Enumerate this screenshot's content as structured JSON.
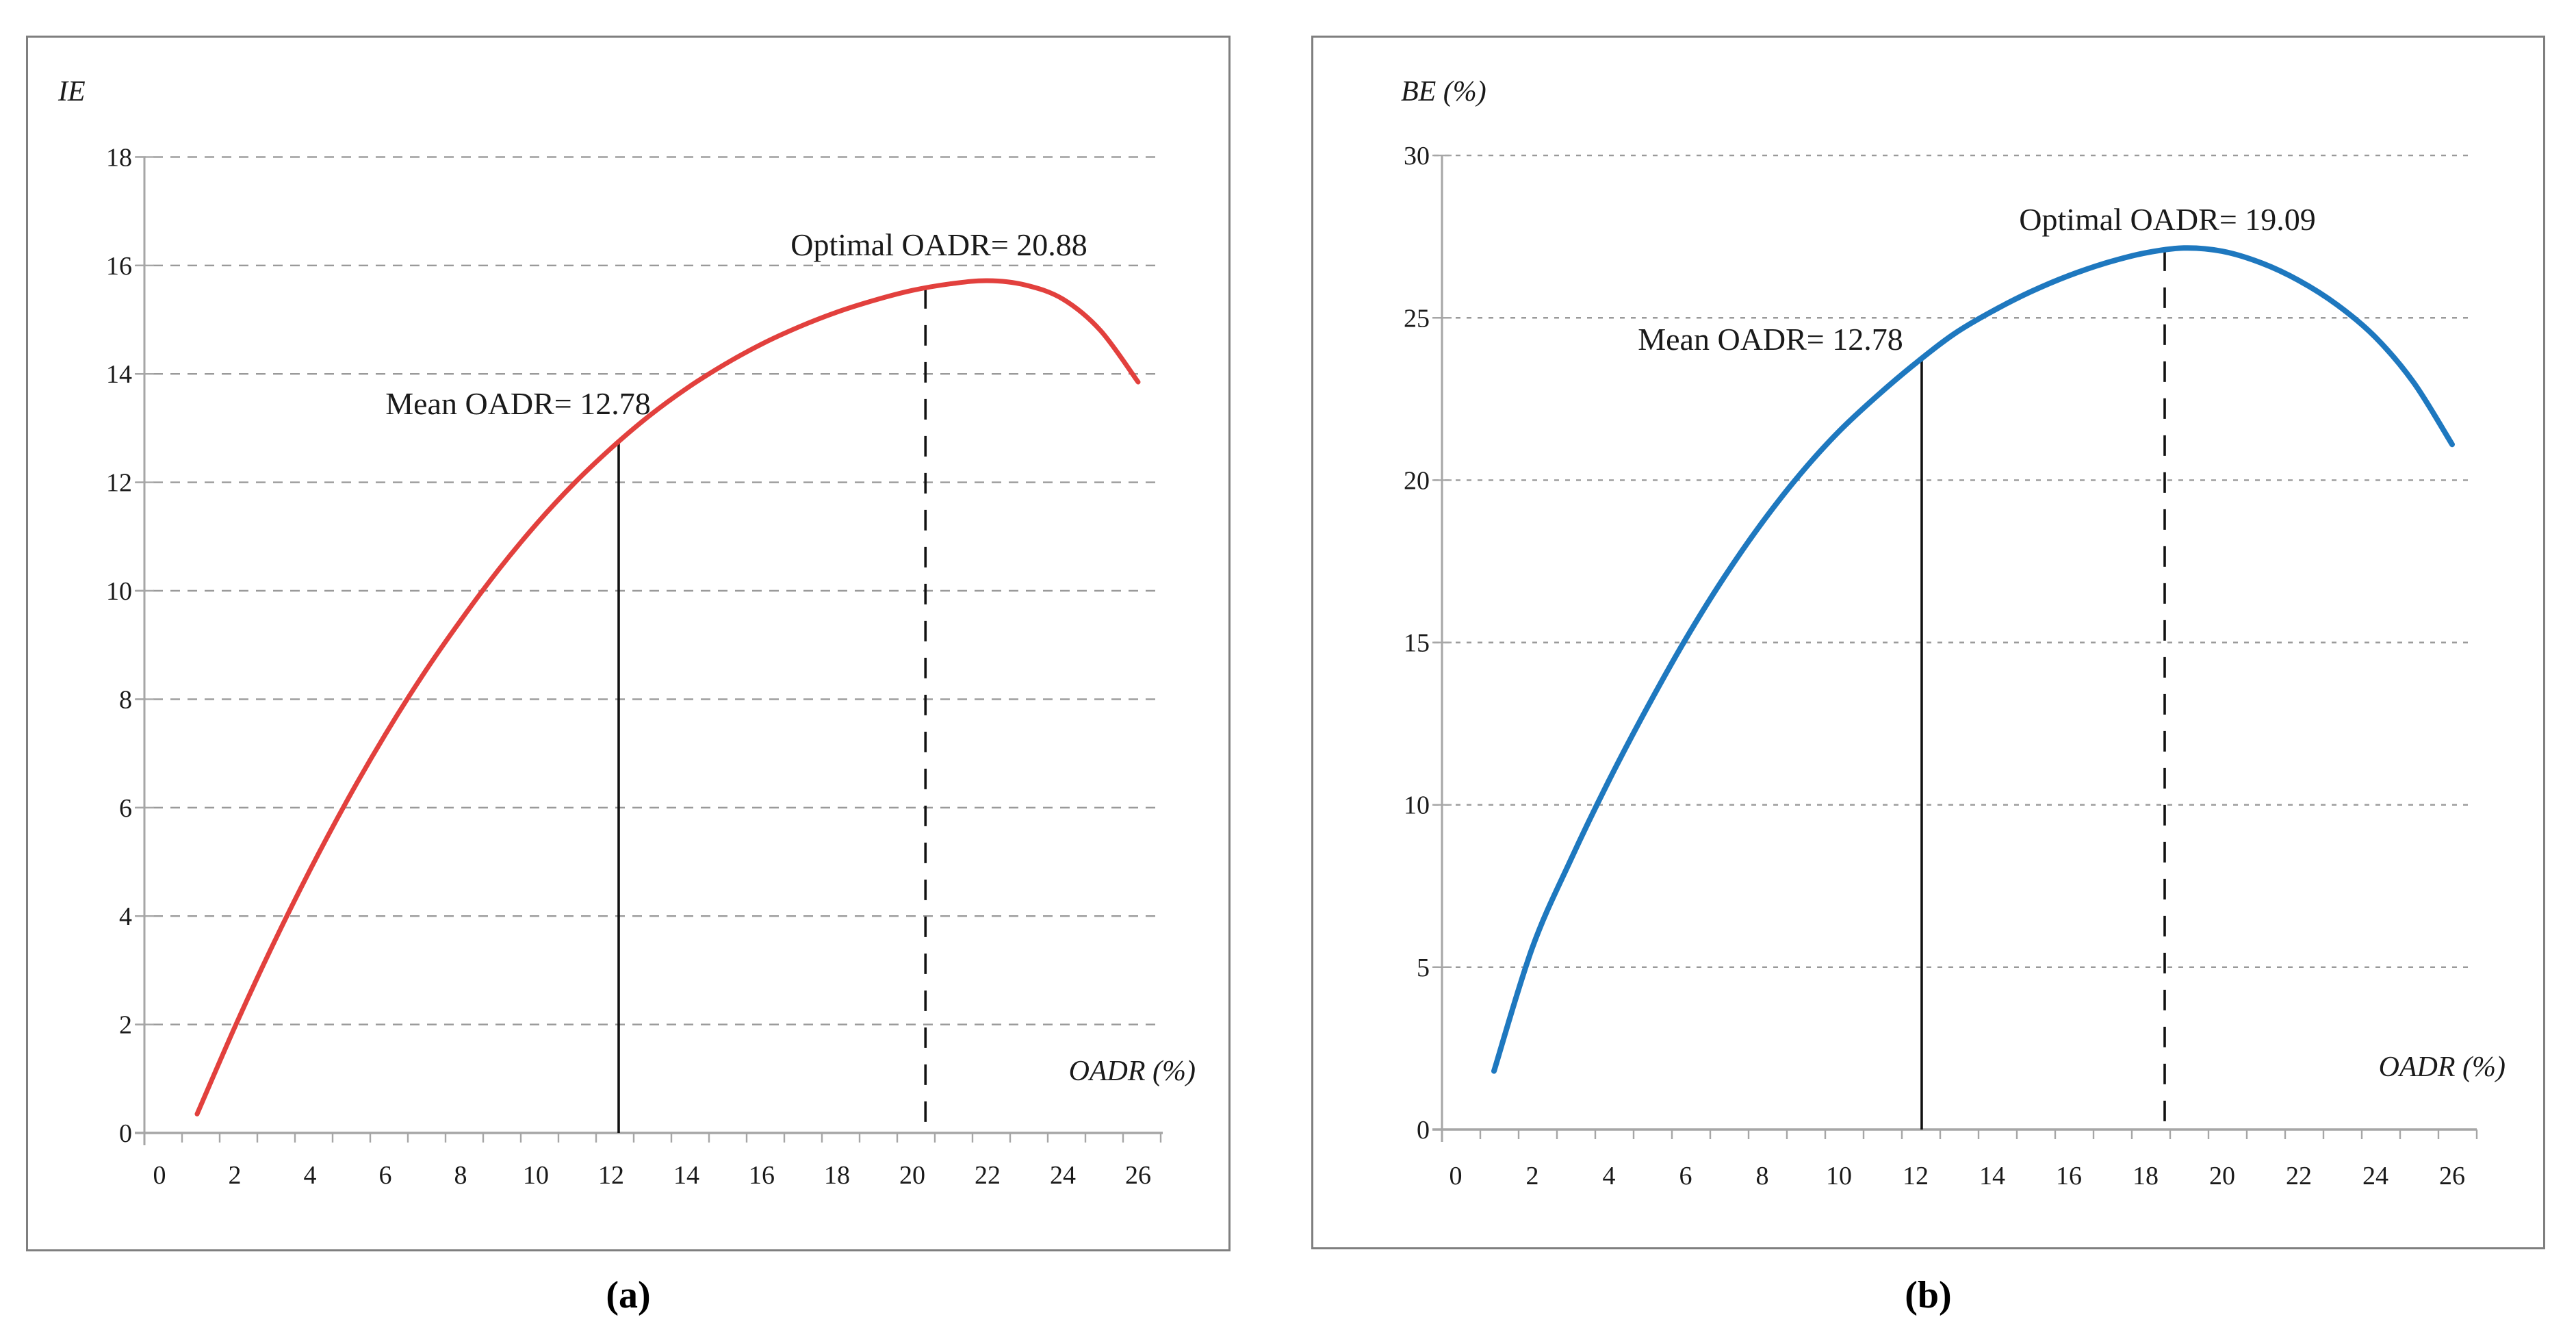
{
  "figure": {
    "captions": {
      "a": "(a)",
      "b": "(b)"
    }
  },
  "chart_data": [
    {
      "id": "a",
      "type": "line",
      "caption": "(a)",
      "y_axis_label": "IE",
      "x_axis_label": "OADR (%)",
      "x_range": [
        0,
        26
      ],
      "y_range": [
        0,
        18
      ],
      "x_ticks": [
        0,
        2,
        4,
        6,
        8,
        10,
        12,
        14,
        16,
        18,
        20,
        22,
        24,
        26
      ],
      "y_ticks": [
        0,
        2,
        4,
        6,
        8,
        10,
        12,
        14,
        16,
        18
      ],
      "grid": "dashed-horizontal",
      "legend": "none",
      "series": [
        {
          "name": "IE vs OADR",
          "color": "#e2403d",
          "x": [
            1,
            2,
            3,
            4,
            5,
            6,
            7,
            8,
            9,
            10,
            11,
            12,
            13,
            14,
            15,
            16,
            17,
            18,
            19,
            20,
            21,
            22,
            23,
            24,
            25,
            26
          ],
          "y": [
            0.35,
            1.95,
            3.45,
            4.85,
            6.15,
            7.35,
            8.45,
            9.45,
            10.38,
            11.22,
            11.97,
            12.63,
            13.22,
            13.73,
            14.17,
            14.55,
            14.87,
            15.14,
            15.36,
            15.54,
            15.66,
            15.72,
            15.64,
            15.38,
            14.8,
            13.85
          ]
        }
      ],
      "annotations": {
        "mean": {
          "label": "Mean OADR= 12.78",
          "value": 12.78,
          "line_x": 12.2,
          "line_style": "solid"
        },
        "optimal": {
          "label": "Optimal OADR= 20.88",
          "value": 20.88,
          "line_x": 20.35,
          "line_style": "dashed"
        }
      }
    },
    {
      "id": "b",
      "type": "line",
      "caption": "(b)",
      "y_axis_label": "BE (%)",
      "x_axis_label": "OADR (%)",
      "x_range": [
        0,
        26
      ],
      "y_range": [
        0,
        30
      ],
      "x_ticks": [
        0,
        2,
        4,
        6,
        8,
        10,
        12,
        14,
        16,
        18,
        20,
        22,
        24,
        26
      ],
      "y_ticks": [
        0,
        5,
        10,
        15,
        20,
        25,
        30
      ],
      "grid": "dashed-horizontal",
      "legend": "none",
      "series": [
        {
          "name": "BE vs OADR",
          "color": "#1e78bf",
          "x": [
            1,
            2,
            3,
            4,
            5,
            6,
            7,
            8,
            9,
            10,
            11,
            12,
            13,
            14,
            15,
            16,
            17,
            18,
            19,
            20,
            21,
            22,
            23,
            24,
            25,
            26
          ],
          "y": [
            1.8,
            5.6,
            8.3,
            10.75,
            13.0,
            15.1,
            17.0,
            18.7,
            20.2,
            21.5,
            22.6,
            23.6,
            24.5,
            25.2,
            25.8,
            26.3,
            26.7,
            27.0,
            27.15,
            27.05,
            26.7,
            26.15,
            25.4,
            24.4,
            23.0,
            21.1
          ]
        }
      ],
      "annotations": {
        "mean": {
          "label": "Mean OADR= 12.78",
          "value": 12.78,
          "line_x": 12.16,
          "line_style": "solid"
        },
        "optimal": {
          "label": "Optimal OADR= 19.09",
          "value": 19.09,
          "line_x": 18.5,
          "line_style": "dashed"
        }
      }
    }
  ],
  "colors": {
    "curve_a": "#e2403d",
    "curve_b": "#1e78bf",
    "axis": "#a6a6a6",
    "grid": "#9a9a9a",
    "border": "#7f7f7f",
    "annotation_line": "#111111",
    "text": "#1a1a1a"
  }
}
